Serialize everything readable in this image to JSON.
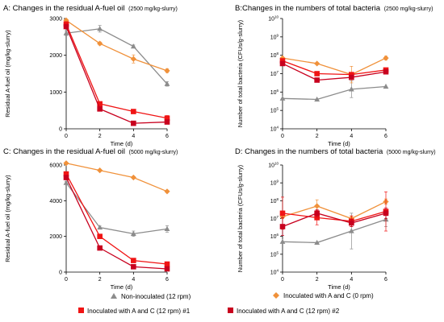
{
  "colors": {
    "grey": "#8c8c8c",
    "orange": "#f0913a",
    "red1": "#f01414",
    "red2": "#c8001e",
    "axis": "#000000"
  },
  "legend": {
    "items": [
      {
        "key": "s0",
        "label": "Non-inoculated (12 rpm)",
        "marker": "triangle",
        "color": "#8c8c8c"
      },
      {
        "key": "s1",
        "label": "Inoculated with A and C (0 rpm)",
        "marker": "diamond",
        "color": "#f0913a"
      },
      {
        "key": "s2",
        "label": "Inoculated with A and C (12 rpm) #1",
        "marker": "square",
        "color": "#f01414"
      },
      {
        "key": "s3",
        "label": "Inoculated with A and C (12 rpm) #2",
        "marker": "square",
        "color": "#c8001e"
      }
    ]
  },
  "chart_data": [
    {
      "panel": "A",
      "type": "line",
      "title": "A: Changes in the residual A-fuel oil",
      "subtitle": "(2500 mg/kg-slurry)",
      "xlabel": "Time (d)",
      "ylabel": "Residual A-fuel oil (mg/kg-slurry)",
      "scale": "linear",
      "xlim": [
        0,
        6
      ],
      "ylim": [
        0,
        3000
      ],
      "xticks": [
        0,
        2,
        4,
        6
      ],
      "yticks": [
        0,
        1000,
        2000,
        3000
      ],
      "ytick_labels": [
        "0",
        "1000",
        "2000",
        "3000"
      ],
      "x": [
        0,
        2,
        4,
        6
      ],
      "series": [
        {
          "key": "s0",
          "values": [
            2600,
            2720,
            2240,
            1220
          ],
          "err": [
            60,
            90,
            40,
            60
          ]
        },
        {
          "key": "s1",
          "values": [
            2950,
            2320,
            1900,
            1580
          ],
          "err": [
            30,
            40,
            110,
            50
          ]
        },
        {
          "key": "s2",
          "values": [
            2850,
            680,
            470,
            290
          ],
          "err": [
            50,
            40,
            30,
            70
          ]
        },
        {
          "key": "s3",
          "values": [
            2780,
            540,
            150,
            185
          ],
          "err": [
            40,
            40,
            30,
            30
          ]
        }
      ]
    },
    {
      "panel": "B",
      "type": "line",
      "title": "B:Changes in the numbers of total bacteria",
      "subtitle": "(2500 mg/kg-slurry)",
      "xlabel": "Time (d)",
      "ylabel": "Number of total bacteria (CFUs/g-slurry)",
      "scale": "log",
      "xlim": [
        0,
        6
      ],
      "ylim_exp": [
        4,
        10
      ],
      "xticks": [
        0,
        2,
        4,
        6
      ],
      "ytick_exps": [
        4,
        5,
        6,
        7,
        8,
        9,
        10
      ],
      "x": [
        0,
        2,
        4,
        6
      ],
      "series": [
        {
          "key": "s0",
          "values_log10": [
            5.65,
            5.6,
            6.15,
            6.3
          ],
          "err": [
            0,
            0,
            0.45,
            0
          ]
        },
        {
          "key": "s1",
          "values_log10": [
            7.85,
            7.55,
            6.95,
            7.85
          ],
          "err": [
            0.05,
            0.05,
            0.45,
            0.1
          ]
        },
        {
          "key": "s2",
          "values_log10": [
            7.7,
            7.0,
            6.95,
            7.2
          ],
          "err": [
            0.1,
            0.1,
            0.1,
            0.1
          ]
        },
        {
          "key": "s3",
          "values_log10": [
            7.55,
            6.65,
            6.8,
            7.1
          ],
          "err": [
            0.1,
            0.1,
            0.1,
            0.1
          ]
        }
      ]
    },
    {
      "panel": "C",
      "type": "line",
      "title": "C: Changes in the residual A-fuel oil",
      "subtitle": "(5000 mg/kg-slurry)",
      "xlabel": "Time (d)",
      "ylabel": "Residual A-fuel oil (mg/kg-slurry)",
      "scale": "linear",
      "xlim": [
        0,
        6
      ],
      "ylim": [
        0,
        6000
      ],
      "xticks": [
        0,
        2,
        4,
        6
      ],
      "yticks": [
        0,
        2000,
        4000,
        6000
      ],
      "ytick_labels": [
        "0",
        "2000",
        "4000",
        "6000"
      ],
      "x": [
        0,
        2,
        4,
        6
      ],
      "series": [
        {
          "key": "s0",
          "values": [
            5000,
            2500,
            2150,
            2420
          ],
          "err": [
            80,
            80,
            150,
            180
          ]
        },
        {
          "key": "s1",
          "values": [
            6100,
            5700,
            5300,
            4520
          ],
          "err": [
            40,
            60,
            60,
            50
          ]
        },
        {
          "key": "s2",
          "values": [
            5500,
            2000,
            650,
            450
          ],
          "err": [
            60,
            50,
            50,
            40
          ]
        },
        {
          "key": "s3",
          "values": [
            5300,
            1350,
            300,
            180
          ],
          "err": [
            60,
            50,
            40,
            30
          ]
        }
      ]
    },
    {
      "panel": "D",
      "type": "line",
      "title": "D: Changes in the numbers of total bacteria",
      "subtitle": "(5000 mg/kg-slurry)",
      "xlabel": "Time (d)",
      "ylabel": "Number of total bacteria (CFUs/g-slurry)",
      "scale": "log",
      "xlim": [
        0,
        6
      ],
      "ylim_exp": [
        4,
        10
      ],
      "xticks": [
        0,
        2,
        4,
        6
      ],
      "ytick_exps": [
        4,
        5,
        6,
        7,
        8,
        9,
        10
      ],
      "x": [
        0,
        2,
        4,
        6
      ],
      "series": [
        {
          "key": "s0",
          "values_log10": [
            5.7,
            5.65,
            6.3,
            6.95
          ],
          "err": [
            0,
            0,
            1.0,
            0.4
          ]
        },
        {
          "key": "s1",
          "values_log10": [
            7.1,
            7.7,
            7.0,
            7.95
          ],
          "err": [
            0.1,
            0.35,
            0.15,
            0.15
          ]
        },
        {
          "key": "s2",
          "values_log10": [
            7.3,
            7.05,
            6.85,
            7.4
          ],
          "err": [
            0.9,
            0.4,
            0.3,
            1.1
          ]
        },
        {
          "key": "s3",
          "values_log10": [
            6.55,
            7.3,
            6.75,
            7.3
          ],
          "err": [
            0.5,
            0.2,
            0.2,
            0.3
          ]
        }
      ]
    }
  ]
}
